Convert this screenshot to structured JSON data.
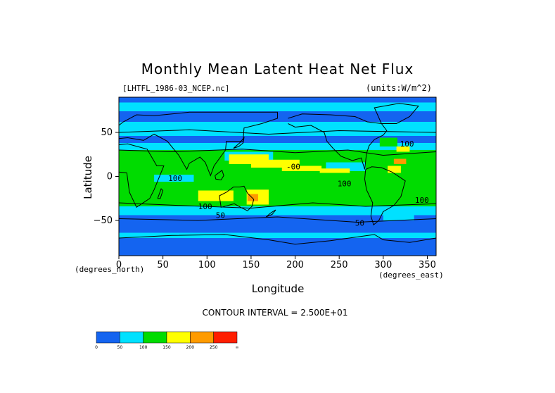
{
  "chart_data": {
    "type": "heatmap",
    "title": "Monthly Mean Latent Heat Net Flux",
    "file_label": "[LHTFL_1986-03_NCEP.nc]",
    "units_label": "(units:W/m^2)",
    "xlabel": "Longitude",
    "ylabel": "Latitude",
    "x_units_left": "(degrees_north)",
    "x_units_right": "(degrees_east)",
    "xlim": [
      0,
      360
    ],
    "ylim": [
      -90,
      90
    ],
    "x_ticks": [
      0,
      50,
      100,
      150,
      200,
      250,
      300,
      350
    ],
    "y_ticks": [
      50,
      0,
      -50
    ],
    "contour_interval_text": "CONTOUR INTERVAL = 2.500E+01",
    "contour_labels": [
      {
        "text": "100",
        "lon": 319,
        "lat": 34
      },
      {
        "text": "-00",
        "lon": 190,
        "lat": 8
      },
      {
        "text": "100",
        "lon": 56,
        "lat": -5
      },
      {
        "text": "100",
        "lon": 248,
        "lat": -11
      },
      {
        "text": "100",
        "lon": 336,
        "lat": -30
      },
      {
        "text": "100",
        "lon": 90,
        "lat": -37
      },
      {
        "text": "50",
        "lon": 110,
        "lat": -47
      },
      {
        "text": "50",
        "lon": 268,
        "lat": -56
      }
    ],
    "colorbar": {
      "colors": [
        "#1464f0",
        "#00e1ff",
        "#00dc00",
        "#ffff00",
        "#ff9b00",
        "#ff1e00"
      ],
      "tick_labels": [
        "0",
        "50",
        "100",
        "150",
        "200",
        "250",
        "∞"
      ]
    },
    "colors": {
      "level0": "#1464f0",
      "level1": "#00e1ff",
      "level2": "#00dc00",
      "level3": "#ffff00",
      "level4": "#ff9b00",
      "level5": "#ff1e00"
    }
  }
}
